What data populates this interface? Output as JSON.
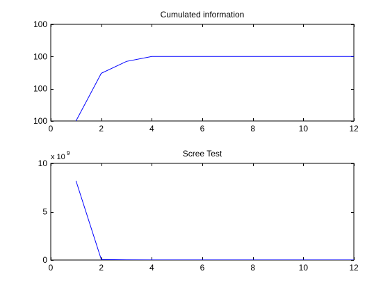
{
  "chart_data": [
    {
      "type": "line",
      "title": "Cumulated information",
      "xlabel": "",
      "ylabel": "",
      "xlim": [
        0,
        12
      ],
      "ylim": [
        0,
        3
      ],
      "xticks": [
        0,
        2,
        4,
        6,
        8,
        10,
        12
      ],
      "xtick_labels": [
        "0",
        "2",
        "4",
        "6",
        "8",
        "10",
        "12"
      ],
      "yticks": [
        0,
        1,
        2,
        3
      ],
      "ytick_labels": [
        "100",
        "100",
        "100",
        "100"
      ],
      "grid": false,
      "line_color": "#0000ff",
      "x": [
        1,
        2,
        3,
        4,
        5,
        6,
        7,
        8,
        9,
        10,
        11,
        12
      ],
      "series": [
        {
          "values": [
            0,
            1.48,
            1.85,
            2.0,
            2.0,
            2.0,
            2.0,
            2.0,
            2.0,
            2.0,
            2.0,
            2.0
          ]
        }
      ]
    },
    {
      "type": "line",
      "title": "Scree Test",
      "xlabel": "",
      "ylabel": "",
      "y_exponent_label": "x 10",
      "y_exponent": "9",
      "xlim": [
        0,
        12
      ],
      "ylim": [
        0,
        10
      ],
      "xticks": [
        0,
        2,
        4,
        6,
        8,
        10,
        12
      ],
      "xtick_labels": [
        "0",
        "2",
        "4",
        "6",
        "8",
        "10",
        "12"
      ],
      "yticks": [
        0,
        5,
        10
      ],
      "ytick_labels": [
        "0",
        "5",
        "10"
      ],
      "grid": false,
      "line_color": "#0000ff",
      "x": [
        1,
        2,
        3,
        4,
        5,
        6,
        7,
        8,
        9,
        10,
        11,
        12
      ],
      "series": [
        {
          "values": [
            8.2,
            0.05,
            0.02,
            0.01,
            0.01,
            0.01,
            0.01,
            0.01,
            0.01,
            0.01,
            0.01,
            0.01
          ]
        }
      ]
    }
  ]
}
